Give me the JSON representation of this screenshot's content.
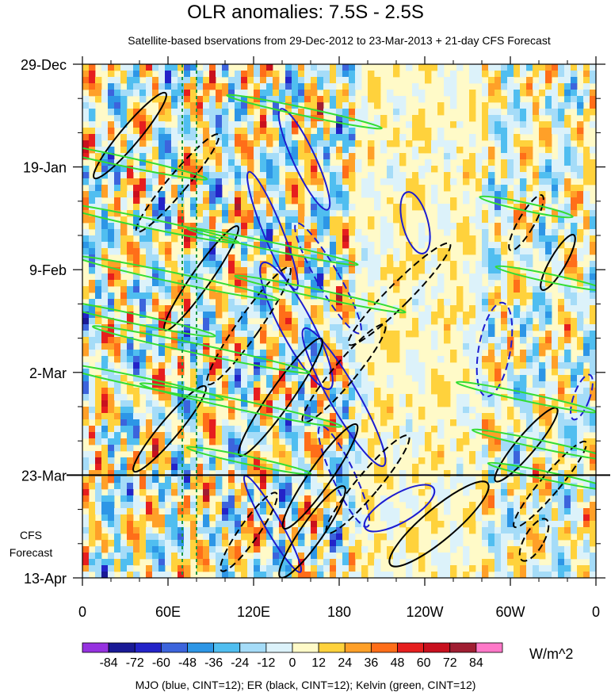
{
  "title": "OLR anomalies: 7.5S - 2.5S",
  "subtitle": "Satellite-based bservations from 29-Dec-2012 to 23-Mar-2013 + 21-day CFS Forecast",
  "footer": "MJO (blue, CINT=12); ER (black, CINT=12); Kelvin (green, CINT=12)",
  "units": "W/m^2",
  "forecast_label": [
    "CFS",
    "Forecast"
  ],
  "colors": {
    "mjo_contour": "#1c1cd0",
    "er_contour": "#000000",
    "kelvin_contour": "#33dd33",
    "marker_line": "#1a9641"
  },
  "chart_data": {
    "type": "heatmap",
    "variable": "OLR anomalies",
    "lat_band": "7.5S - 2.5S",
    "x_axis": {
      "quantity": "longitude",
      "ticks": [
        "0",
        "60E",
        "120E",
        "180",
        "120W",
        "60W",
        "0"
      ],
      "tick_values": [
        0,
        60,
        120,
        180,
        240,
        300,
        360
      ],
      "range": [
        0,
        360
      ]
    },
    "y_axis": {
      "quantity": "date",
      "ticks": [
        "29-Dec",
        "19-Jan",
        "9-Feb",
        "2-Mar",
        "23-Mar",
        "13-Apr"
      ],
      "range": [
        "2012-12-29",
        "2013-04-13"
      ],
      "reversed": true
    },
    "observation_end": "23-Mar",
    "longitude_markers": [
      70,
      80
    ],
    "colorbar": {
      "levels": [
        -84,
        -72,
        -60,
        -48,
        -36,
        -24,
        -12,
        0,
        12,
        24,
        36,
        48,
        60,
        72,
        84
      ],
      "labels": [
        "-84",
        "-72",
        "-60",
        "-48",
        "-36",
        "-24",
        "-12",
        "0",
        "12",
        "24",
        "36",
        "48",
        "60",
        "72",
        "84"
      ],
      "colors": [
        "#9632e0",
        "#1a1a96",
        "#2323c8",
        "#3c64dc",
        "#2d96e6",
        "#50bef0",
        "#a5dcf8",
        "#dcf2fa",
        "#fffac8",
        "#ffd23c",
        "#ffa028",
        "#ff6e19",
        "#e61e1e",
        "#c8101e",
        "#a01e32",
        "#ff78c8"
      ],
      "units": "W/m^2"
    },
    "contours": [
      {
        "name": "MJO",
        "color": "blue",
        "cint": 12
      },
      {
        "name": "ER",
        "color": "black",
        "cint": 12
      },
      {
        "name": "Kelvin",
        "color": "green",
        "cint": 12
      }
    ]
  }
}
